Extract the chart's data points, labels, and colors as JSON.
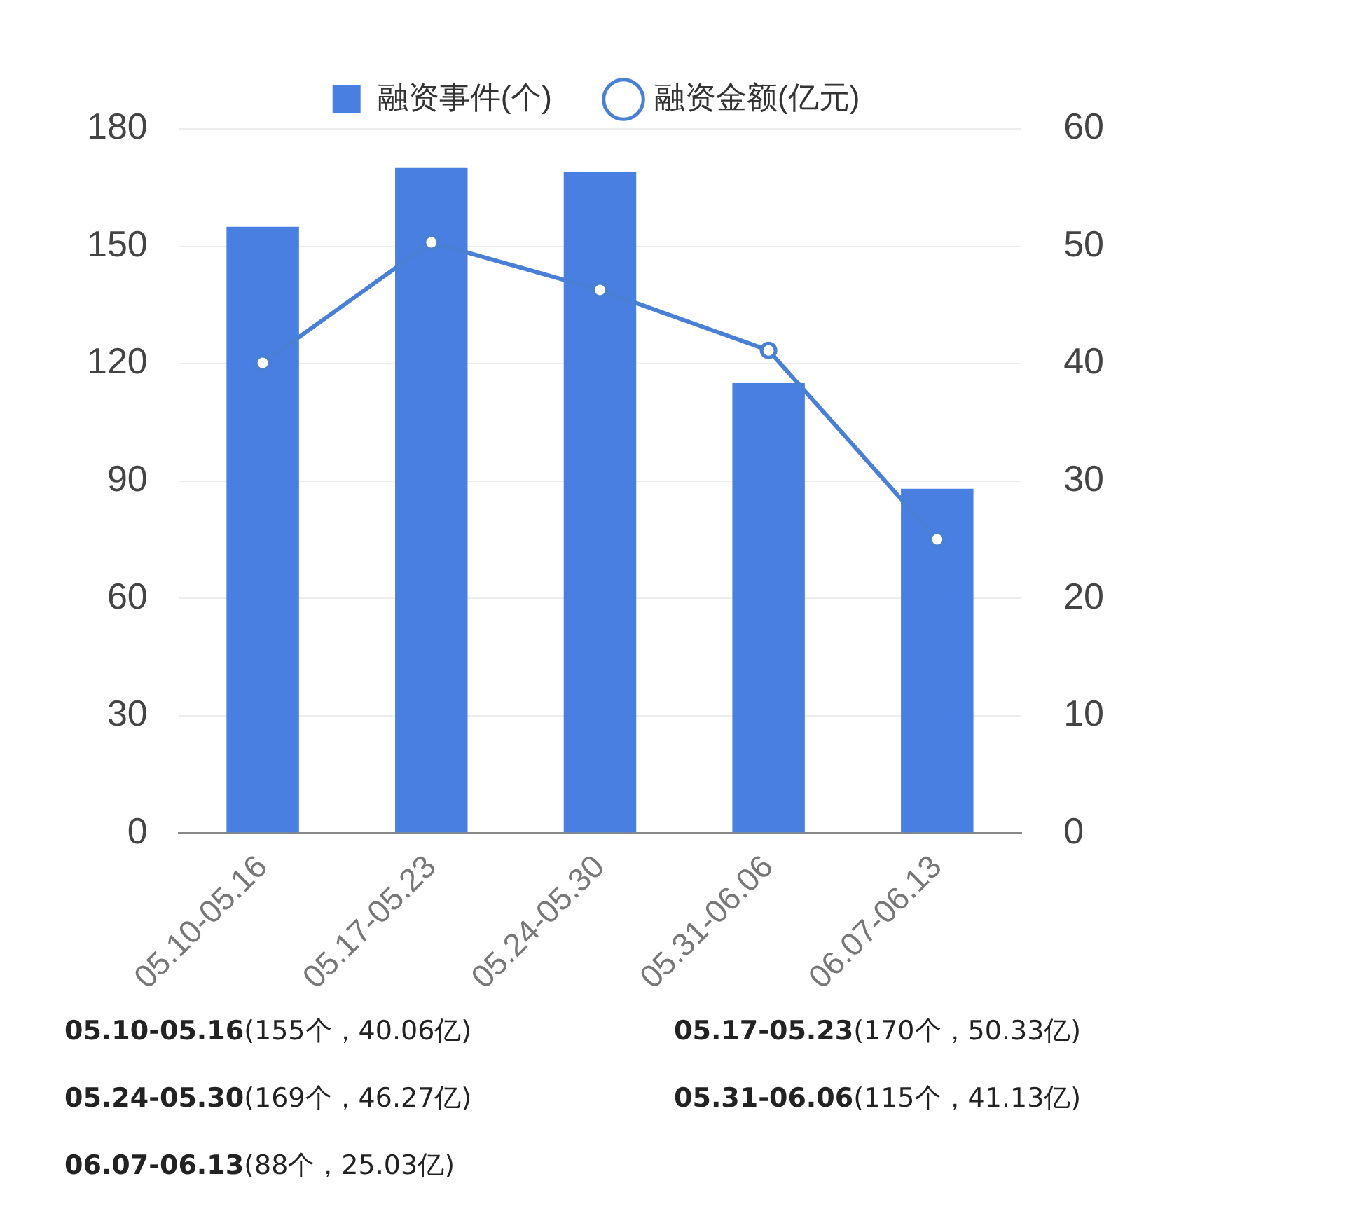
{
  "chart_data": {
    "type": "bar",
    "categories": [
      "05.10-05.16",
      "05.17-05.23",
      "05.24-05.30",
      "05.31-06.06",
      "06.07-06.13"
    ],
    "series": [
      {
        "name": "融资事件(个)",
        "color": "#4a7fe2",
        "values": [
          155,
          170,
          169,
          115,
          88
        ],
        "value_labels": [
          "(155个，",
          "(170个，",
          "(169个，",
          "(115个，",
          "(88个，"
        ]
      },
      {
        "name": "融资金额(亿元)",
        "type": "line",
        "axis": "y2",
        "color": "#4a7fd6",
        "marker": "circle",
        "values": [
          40.06,
          50.33,
          46.27,
          41.13,
          25.03
        ],
        "value_labels": [
          "40.06亿)",
          "50.33亿)",
          "46.27亿)",
          "41.13亿)",
          "25.03亿)"
        ]
      }
    ],
    "ylim": [
      0,
      180
    ],
    "yticks": [
      0,
      30,
      60,
      90,
      120,
      150,
      180
    ],
    "y2lim": [
      0,
      60
    ],
    "y2ticks": [
      0,
      10,
      20,
      30,
      40,
      50,
      60
    ],
    "grid": "y",
    "legend": "top"
  }
}
